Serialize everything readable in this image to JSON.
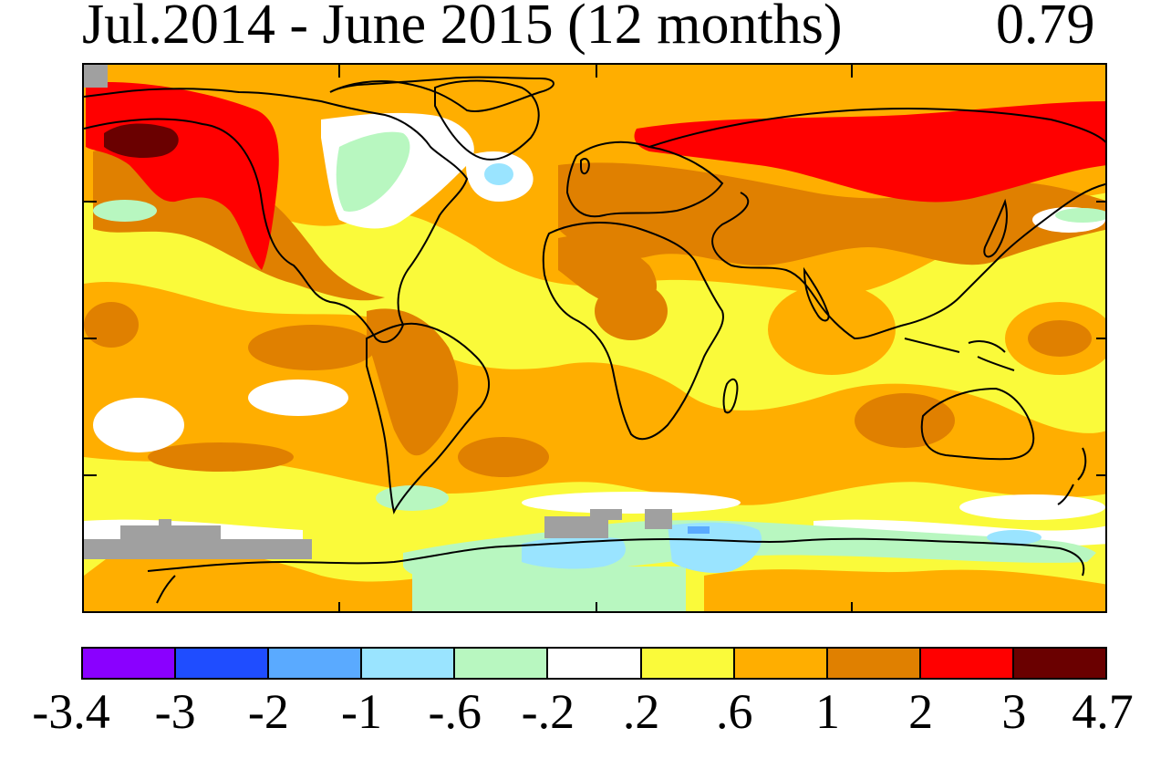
{
  "title": {
    "period": "Jul.2014 - June 2015 (12 months)",
    "global_mean": "0.79"
  },
  "legend": {
    "levels": [
      "-3.4",
      "-3",
      "-2",
      "-1",
      "-.6",
      "-.2",
      ".2",
      ".6",
      "1",
      "2",
      "3",
      "4.7"
    ],
    "colors": [
      "#8a00ff",
      "#1f4dff",
      "#5aaaff",
      "#9ae4ff",
      "#b8f7c0",
      "#ffffff",
      "#fafa3a",
      "#ffae00",
      "#e08000",
      "#ff0000",
      "#6a0000"
    ]
  },
  "map": {
    "missing_data_color": "#a0a0a0",
    "coastline_color": "#000000"
  }
}
